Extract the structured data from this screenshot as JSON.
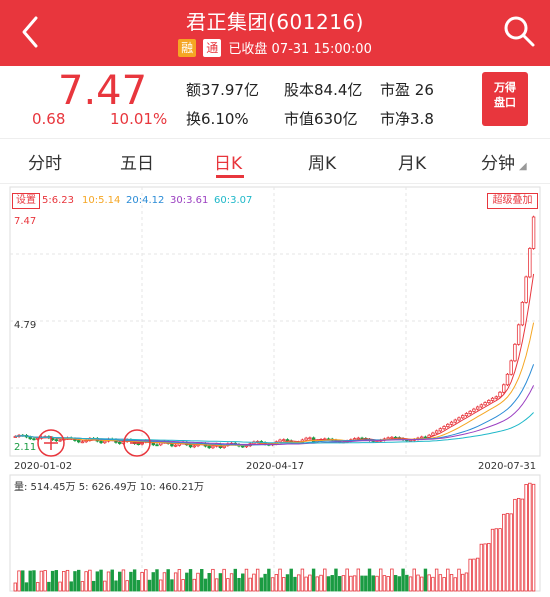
{
  "header": {
    "title": "君正集团(601216)",
    "badge_rong": "融",
    "badge_tong": "通",
    "status": "已收盘 07-31 15:00:00"
  },
  "quote": {
    "price": "7.47",
    "change": "0.68",
    "change_pct": "10.01%",
    "stats": [
      {
        "label": "额",
        "value": "37.97亿"
      },
      {
        "label": "股本",
        "value": "84.4亿"
      },
      {
        "label": "市盈",
        "value": "26"
      },
      {
        "label": "换",
        "value": "6.10%"
      },
      {
        "label": "市值",
        "value": "630亿"
      },
      {
        "label": "市净",
        "value": "3.8"
      }
    ],
    "promo_line1": "万得",
    "promo_line2": "盘口"
  },
  "tabs": [
    "分时",
    "五日",
    "日K",
    "周K",
    "月K",
    "分钟"
  ],
  "active_tab": "日K",
  "chart": {
    "setting_label": "设置",
    "overlay_label": "超级叠加",
    "ma": [
      {
        "label": "5:6.23",
        "color": "#e8363d"
      },
      {
        "label": "10:5.14",
        "color": "#f5a623"
      },
      {
        "label": "20:4.12",
        "color": "#2a8bd6"
      },
      {
        "label": "30:3.61",
        "color": "#9b3fc1"
      },
      {
        "label": "60:3.07",
        "color": "#1fb8c9"
      }
    ],
    "y_top": "7.47",
    "y_mid": "4.79",
    "y_low": "2.11",
    "dates": [
      "2020-01-02",
      "2020-04-17",
      "2020-07-31"
    ],
    "volume_text": "量: 514.45万 5: 626.49万 10: 460.21万"
  },
  "chart_data": {
    "type": "candlestick",
    "ylim": [
      2.11,
      7.47
    ],
    "x_labels": [
      "2020-01-02",
      "2020-04-17",
      "2020-07-31"
    ],
    "last_close": 7.47,
    "ma": {
      "MA5": 6.23,
      "MA10": 5.14,
      "MA20": 4.12,
      "MA30": 3.61,
      "MA60": 3.07
    },
    "volume": {
      "current": "514.45万",
      "MA5": "626.49万",
      "MA10": "460.21万"
    }
  },
  "colors": {
    "up": "#e8363d",
    "down": "#1a9b42",
    "accent": "#e8363d"
  }
}
